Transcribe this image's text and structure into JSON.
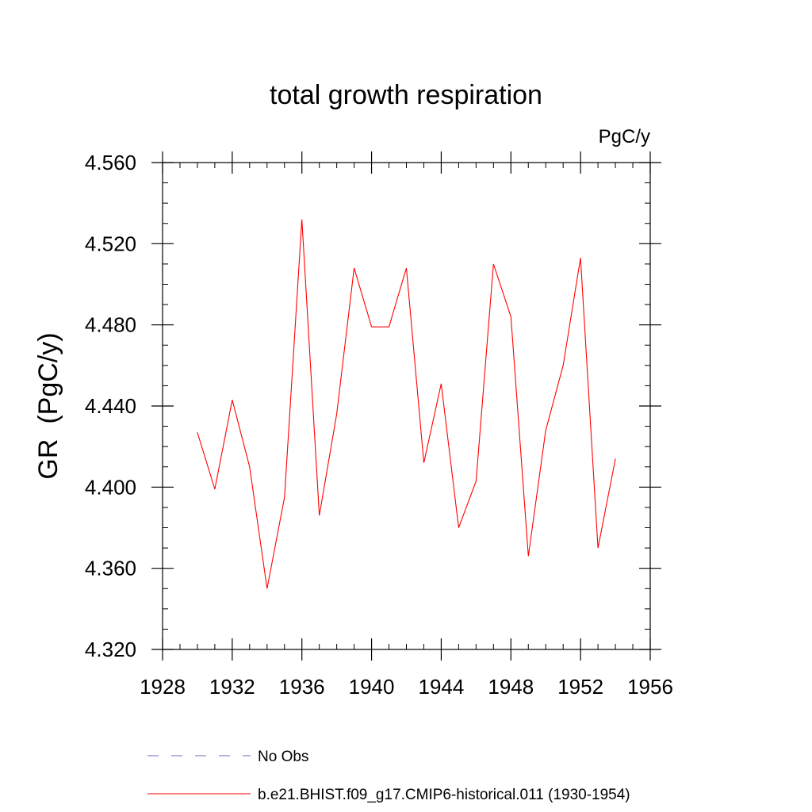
{
  "chart_data": {
    "type": "line",
    "title": "total growth respiration",
    "units_label": "PgC/y",
    "ylabel": "GR  (PgC/y)",
    "xlabel": "",
    "xlim": [
      1928,
      1956
    ],
    "ylim": [
      4.32,
      4.56
    ],
    "xticks": [
      1928,
      1932,
      1936,
      1940,
      1944,
      1948,
      1952,
      1956
    ],
    "xtick_labels": [
      "1928",
      "1932",
      "1936",
      "1940",
      "1944",
      "1948",
      "1952",
      "1956"
    ],
    "yticks": [
      4.32,
      4.36,
      4.4,
      4.44,
      4.48,
      4.52,
      4.56
    ],
    "ytick_labels": [
      "4.320",
      "4.360",
      "4.400",
      "4.440",
      "4.480",
      "4.520",
      "4.560"
    ],
    "x_minor_step": 1,
    "y_minor_step": 0.01,
    "grid": false,
    "legend_position": "bottom",
    "series": [
      {
        "name": "b.e21.BHIST.f09_g17.CMIP6-historical.011 (1930-1954)",
        "color": "#ff0000",
        "style": "solid",
        "x": [
          1930,
          1931,
          1932,
          1933,
          1934,
          1935,
          1936,
          1937,
          1938,
          1939,
          1940,
          1941,
          1942,
          1943,
          1944,
          1945,
          1946,
          1947,
          1948,
          1949,
          1950,
          1951,
          1952,
          1953,
          1954
        ],
        "y": [
          4.427,
          4.399,
          4.443,
          4.41,
          4.35,
          4.395,
          4.532,
          4.386,
          4.436,
          4.508,
          4.479,
          4.479,
          4.508,
          4.412,
          4.451,
          4.38,
          4.403,
          4.51,
          4.484,
          4.366,
          4.428,
          4.46,
          4.513,
          4.37,
          4.414
        ]
      }
    ],
    "legend": [
      {
        "label": "No Obs",
        "color": "#6b6bb8",
        "style": "dashed"
      },
      {
        "label": "b.e21.BHIST.f09_g17.CMIP6-historical.011 (1930-1954)",
        "color": "#ff0000",
        "style": "solid"
      }
    ]
  }
}
